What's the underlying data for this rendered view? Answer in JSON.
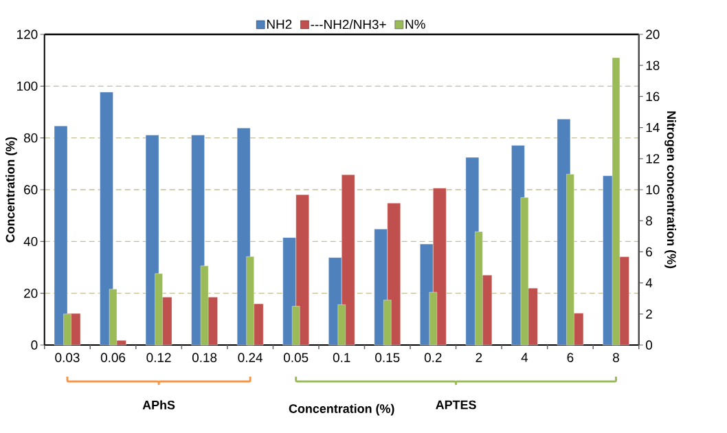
{
  "chart_data": {
    "type": "bar",
    "categories": [
      "0.03",
      "0.06",
      "0.12",
      "0.18",
      "0.24",
      "0.05",
      "0.1",
      "0.15",
      "0.2",
      "2",
      "4",
      "6",
      "8"
    ],
    "series": [
      {
        "name": "NH2",
        "color": "#4f81bd",
        "values": [
          84.6,
          97.7,
          81.1,
          81.1,
          83.8,
          41.5,
          33.8,
          44.8,
          39.0,
          72.5,
          77.1,
          87.3,
          65.4
        ]
      },
      {
        "name": "---NH2/NH3+",
        "color": "#c0504d",
        "values": [
          12.2,
          1.8,
          18.5,
          18.5,
          15.9,
          58.1,
          65.8,
          54.8,
          60.6,
          27.0,
          22.0,
          12.3,
          34.1
        ]
      },
      {
        "name": "N%",
        "color": "#9bbb59",
        "axis": "y2",
        "values": [
          2.0,
          3.6,
          4.6,
          5.1,
          5.7,
          2.5,
          2.6,
          2.9,
          3.4,
          7.3,
          9.5,
          11.0,
          18.5
        ]
      }
    ],
    "xlabel": "Concentration (%)",
    "ylabel": "Concentration (%)",
    "y2label": "Nitrogen concentration (%)",
    "ylim": [
      0,
      120
    ],
    "yticks": [
      0,
      20,
      40,
      60,
      80,
      100,
      120
    ],
    "y2lim": [
      0,
      20
    ],
    "y2ticks": [
      0,
      2,
      4,
      6,
      8,
      10,
      12,
      14,
      16,
      18,
      20
    ],
    "grid": "y",
    "legend": "top",
    "annotations": [
      "APhS",
      "APTES"
    ]
  }
}
